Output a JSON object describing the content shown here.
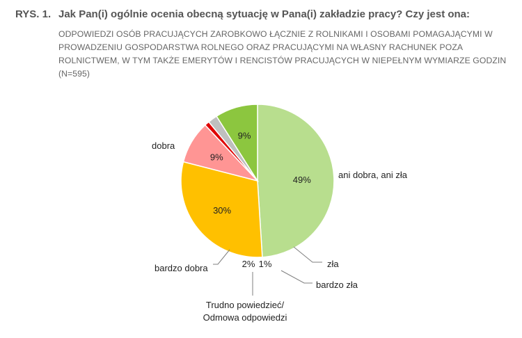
{
  "figure": {
    "number": "RYS. 1.",
    "title": "Jak Pan(i) ogólnie ocenia obecną sytuację w Pana(i) zakładzie pracy? Czy jest ona:",
    "subtitle": "Odpowiedzi osób pracujących zarobkowo łącznie z rolnikami i osobami pomagającymi w prowadzeniu gospodarstwa rolnego oraz pracującymi na własny rachunek poza rolnictwem, w tym także emerytów i rencistów pracujących w niepełnym wymiarze godzin (N=595)"
  },
  "chart_data": {
    "type": "pie",
    "title": "Jak Pan(i) ogólnie ocenia obecną sytuację w Pana(i) zakładzie pracy? Czy jest ona:",
    "n": "N=595",
    "slices": [
      {
        "label": "dobra",
        "value": 49,
        "display": "49%",
        "color": "#b8de8e"
      },
      {
        "label": "ani dobra, ani zła",
        "value": 30,
        "display": "30%",
        "color": "#ffc000"
      },
      {
        "label": "zła",
        "value": 9,
        "display": "9%",
        "color": "#ff9594"
      },
      {
        "label": "bardzo zła",
        "value": 1,
        "display": "1%",
        "color": "#e00000"
      },
      {
        "label": "Trudno powiedzieć/ Odmowa odpowiedzi",
        "value": 2,
        "display": "2%",
        "color": "#bfbfbf"
      },
      {
        "label": "bardzo dobra",
        "value": 9,
        "display": "9%",
        "color": "#8cc63f"
      }
    ]
  }
}
